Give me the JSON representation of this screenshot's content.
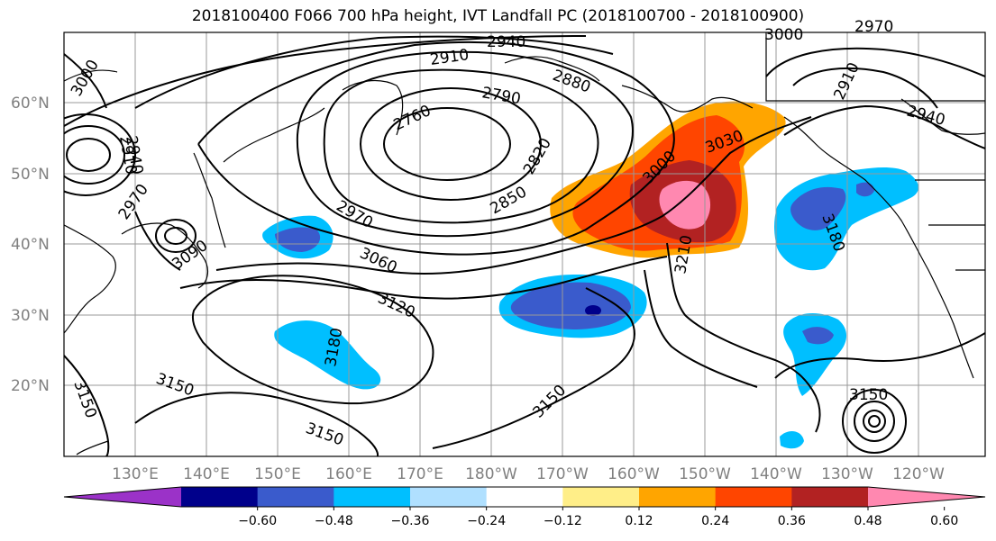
{
  "title": "2018100400 F066 700 hPa height, IVT Landfall PC (2018100700 - 2018100900)",
  "lat_labels": [
    "60°N",
    "50°N",
    "40°N",
    "30°N",
    "20°N"
  ],
  "lon_labels": [
    "130°E",
    "140°E",
    "150°E",
    "160°E",
    "170°E",
    "180°W",
    "170°W",
    "160°W",
    "150°W",
    "140°W",
    "130°W",
    "120°W"
  ],
  "contour_labels": [
    "2940",
    "2910",
    "3000",
    "2940",
    "2910",
    "2970",
    "2880",
    "2790",
    "2760",
    "2820",
    "2850",
    "2970",
    "3000",
    "3030",
    "3060",
    "3120",
    "3180",
    "3180",
    "3210",
    "3150",
    "3150",
    "3150",
    "3150",
    "3150",
    "2970",
    "3000",
    "2910",
    "2940",
    "3090"
  ],
  "colorbar": {
    "ticks": [
      "−0.60",
      "−0.48",
      "−0.36",
      "−0.24",
      "−0.12",
      "0.12",
      "0.24",
      "0.36",
      "0.48",
      "0.60"
    ],
    "colors": [
      "#9b32c8",
      "#00008b",
      "#3a5bcc",
      "#00bfff",
      "#b0e0ff",
      "#ffffff",
      "#ffee88",
      "#ffa500",
      "#ff4500",
      "#b22222",
      "#ff88b0"
    ]
  },
  "colors": {
    "neg_strong": "#3a5bcc",
    "neg_mid": "#00bfff",
    "neg_dark": "#00008b",
    "pos_1": "#ffa500",
    "pos_2": "#ff4500",
    "pos_3": "#b22222",
    "pos_4": "#ff88b0"
  }
}
